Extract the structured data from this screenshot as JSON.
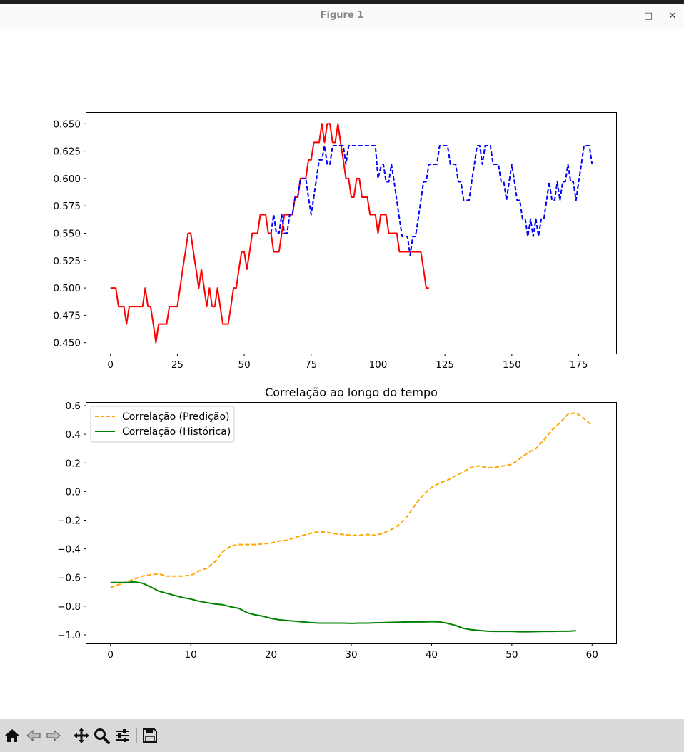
{
  "window": {
    "title": "Figure 1",
    "minimize_glyph": "–",
    "maximize_glyph": "□",
    "close_glyph": "✕"
  },
  "toolbar": {
    "buttons": [
      "home-icon",
      "back-icon",
      "forward-icon",
      "pan-icon",
      "zoom-icon",
      "configure-subplots-icon",
      "save-icon"
    ]
  },
  "colors": {
    "historical_price": "#ff0000",
    "predicted_price": "#0000ff",
    "corr_prediction": "#ffa500",
    "corr_historical": "#008000"
  },
  "chart_data": [
    {
      "type": "line",
      "title": "",
      "xlabel": "",
      "ylabel": "",
      "xlim": [
        -9,
        189
      ],
      "ylim": [
        0.44,
        0.66
      ],
      "xticks": [
        0,
        25,
        50,
        75,
        100,
        125,
        150,
        175
      ],
      "yticks": [
        0.45,
        0.475,
        0.5,
        0.525,
        0.55,
        0.575,
        0.6,
        0.625,
        0.65
      ],
      "ytick_labels": [
        "0.450",
        "0.475",
        "0.500",
        "0.525",
        "0.550",
        "0.575",
        "0.600",
        "0.625",
        "0.650"
      ],
      "grid": false,
      "series": [
        {
          "style": "solid",
          "color": "#ff0000",
          "x": [
            0,
            1,
            2,
            3,
            4,
            5,
            6,
            7,
            8,
            9,
            10,
            11,
            12,
            13,
            14,
            15,
            16,
            17,
            18,
            19,
            20,
            21,
            22,
            23,
            24,
            25,
            26,
            27,
            28,
            29,
            30,
            31,
            32,
            33,
            34,
            35,
            36,
            37,
            38,
            39,
            40,
            41,
            42,
            43,
            44,
            45,
            46,
            47,
            48,
            49,
            50,
            51,
            52,
            53,
            54,
            55,
            56,
            57,
            58,
            59,
            60,
            61,
            62,
            63,
            64,
            65,
            66,
            67,
            68,
            69,
            70,
            71,
            72,
            73,
            74,
            75,
            76,
            77,
            78,
            79,
            80,
            81,
            82,
            83,
            84,
            85,
            86,
            87,
            88,
            89,
            90,
            91,
            92,
            93,
            94,
            95,
            96,
            97,
            98,
            99,
            100,
            101,
            102,
            103,
            104,
            105,
            106,
            107,
            108,
            109,
            110,
            111,
            112,
            113,
            114,
            115,
            116,
            117,
            118,
            119
          ],
          "values": [
            0.5,
            0.5,
            0.5,
            0.483,
            0.483,
            0.483,
            0.467,
            0.483,
            0.483,
            0.483,
            0.483,
            0.483,
            0.483,
            0.5,
            0.483,
            0.483,
            0.467,
            0.45,
            0.467,
            0.467,
            0.467,
            0.467,
            0.483,
            0.483,
            0.483,
            0.483,
            0.5,
            0.517,
            0.533,
            0.55,
            0.55,
            0.533,
            0.517,
            0.5,
            0.517,
            0.5,
            0.483,
            0.5,
            0.483,
            0.483,
            0.5,
            0.483,
            0.467,
            0.467,
            0.467,
            0.483,
            0.5,
            0.5,
            0.517,
            0.533,
            0.533,
            0.517,
            0.533,
            0.55,
            0.55,
            0.55,
            0.567,
            0.567,
            0.567,
            0.55,
            0.55,
            0.533,
            0.533,
            0.533,
            0.55,
            0.567,
            0.567,
            0.567,
            0.567,
            0.583,
            0.583,
            0.6,
            0.6,
            0.6,
            0.617,
            0.617,
            0.633,
            0.633,
            0.633,
            0.65,
            0.633,
            0.65,
            0.65,
            0.633,
            0.633,
            0.65,
            0.633,
            0.617,
            0.6,
            0.6,
            0.583,
            0.583,
            0.6,
            0.6,
            0.583,
            0.583,
            0.583,
            0.567,
            0.567,
            0.567,
            0.55,
            0.567,
            0.567,
            0.567,
            0.55,
            0.55,
            0.55,
            0.55,
            0.533,
            0.533,
            0.533,
            0.533,
            0.533,
            0.533,
            0.533,
            0.533,
            0.533,
            0.517,
            0.5,
            0.5
          ]
        },
        {
          "style": "dashed",
          "color": "#0000ff",
          "x": [
            60,
            61,
            62,
            63,
            64,
            65,
            66,
            67,
            68,
            69,
            70,
            71,
            72,
            73,
            74,
            75,
            76,
            77,
            78,
            79,
            80,
            81,
            82,
            83,
            84,
            85,
            86,
            87,
            88,
            89,
            90,
            91,
            92,
            93,
            94,
            95,
            96,
            97,
            98,
            99,
            100,
            101,
            102,
            103,
            104,
            105,
            106,
            107,
            108,
            109,
            110,
            111,
            112,
            113,
            114,
            115,
            116,
            117,
            118,
            119,
            120,
            121,
            122,
            123,
            124,
            125,
            126,
            127,
            128,
            129,
            130,
            131,
            132,
            133,
            134,
            135,
            136,
            137,
            138,
            139,
            140,
            141,
            142,
            143,
            144,
            145,
            146,
            147,
            148,
            149,
            150,
            151,
            152,
            153,
            154,
            155,
            156,
            157,
            158,
            159,
            160,
            161,
            162,
            163,
            164,
            165,
            166,
            167,
            168,
            169,
            170,
            171,
            172,
            173,
            174,
            175,
            176,
            177,
            178,
            179,
            180
          ],
          "values": [
            0.55,
            0.567,
            0.55,
            0.55,
            0.567,
            0.55,
            0.55,
            0.567,
            0.567,
            0.583,
            0.583,
            0.6,
            0.6,
            0.6,
            0.583,
            0.567,
            0.583,
            0.6,
            0.617,
            0.617,
            0.63,
            0.613,
            0.613,
            0.63,
            0.63,
            0.63,
            0.63,
            0.63,
            0.613,
            0.63,
            0.63,
            0.63,
            0.63,
            0.63,
            0.63,
            0.63,
            0.63,
            0.63,
            0.63,
            0.63,
            0.6,
            0.61,
            0.613,
            0.597,
            0.597,
            0.613,
            0.597,
            0.58,
            0.563,
            0.547,
            0.547,
            0.547,
            0.53,
            0.547,
            0.547,
            0.563,
            0.58,
            0.597,
            0.597,
            0.613,
            0.613,
            0.613,
            0.613,
            0.63,
            0.63,
            0.63,
            0.63,
            0.613,
            0.613,
            0.613,
            0.597,
            0.597,
            0.58,
            0.58,
            0.58,
            0.597,
            0.613,
            0.63,
            0.63,
            0.613,
            0.63,
            0.63,
            0.63,
            0.613,
            0.613,
            0.613,
            0.597,
            0.597,
            0.58,
            0.597,
            0.613,
            0.597,
            0.58,
            0.58,
            0.563,
            0.563,
            0.547,
            0.563,
            0.547,
            0.563,
            0.547,
            0.563,
            0.563,
            0.58,
            0.597,
            0.58,
            0.58,
            0.597,
            0.58,
            0.597,
            0.597,
            0.613,
            0.597,
            0.597,
            0.58,
            0.597,
            0.613,
            0.63,
            0.63,
            0.63,
            0.613
          ]
        }
      ]
    },
    {
      "type": "line",
      "title": "Correlação ao longo do tempo",
      "xlabel": "",
      "ylabel": "",
      "xlim": [
        -3,
        63
      ],
      "ylim": [
        -1.06,
        0.62
      ],
      "xticks": [
        0,
        10,
        20,
        30,
        40,
        50,
        60
      ],
      "yticks": [
        -1.0,
        -0.8,
        -0.6,
        -0.4,
        -0.2,
        0.0,
        0.2,
        0.4,
        0.6
      ],
      "ytick_labels": [
        "−1.0",
        "−0.8",
        "−0.6",
        "−0.4",
        "−0.2",
        "0.0",
        "0.2",
        "0.4",
        "0.6"
      ],
      "grid": false,
      "legend": "upper left",
      "series": [
        {
          "name": "Correlação (Predição)",
          "style": "dashed",
          "color": "#ffa500",
          "x": [
            0,
            1,
            2,
            3,
            4,
            5,
            6,
            7,
            8,
            9,
            10,
            11,
            12,
            13,
            14,
            15,
            16,
            17,
            18,
            19,
            20,
            21,
            22,
            23,
            24,
            25,
            26,
            27,
            28,
            29,
            30,
            31,
            32,
            33,
            34,
            35,
            36,
            37,
            38,
            39,
            40,
            41,
            42,
            43,
            44,
            45,
            46,
            47,
            48,
            49,
            50,
            51,
            52,
            53,
            54,
            55,
            56,
            57,
            58,
            59,
            60
          ],
          "values": [
            -0.67,
            -0.65,
            -0.63,
            -0.61,
            -0.59,
            -0.58,
            -0.575,
            -0.59,
            -0.59,
            -0.59,
            -0.585,
            -0.555,
            -0.535,
            -0.49,
            -0.42,
            -0.38,
            -0.37,
            -0.37,
            -0.37,
            -0.365,
            -0.36,
            -0.345,
            -0.34,
            -0.32,
            -0.305,
            -0.29,
            -0.28,
            -0.285,
            -0.295,
            -0.3,
            -0.305,
            -0.305,
            -0.3,
            -0.305,
            -0.29,
            -0.265,
            -0.23,
            -0.17,
            -0.09,
            -0.02,
            0.03,
            0.06,
            0.08,
            0.11,
            0.14,
            0.17,
            0.18,
            0.165,
            0.17,
            0.18,
            0.19,
            0.23,
            0.27,
            0.3,
            0.36,
            0.43,
            0.48,
            0.54,
            0.55,
            0.51,
            0.46
          ]
        },
        {
          "name": "Correlação (Histórica)",
          "style": "solid",
          "color": "#008000",
          "x": [
            0,
            1,
            2,
            3,
            4,
            5,
            6,
            7,
            8,
            9,
            10,
            11,
            12,
            13,
            14,
            15,
            16,
            17,
            18,
            19,
            20,
            21,
            22,
            23,
            24,
            25,
            26,
            27,
            28,
            29,
            30,
            31,
            32,
            33,
            34,
            35,
            36,
            37,
            38,
            39,
            40,
            41,
            42,
            43,
            44,
            45,
            46,
            47,
            48,
            49,
            50,
            51,
            52,
            53,
            54,
            55,
            56,
            57,
            58
          ],
          "values": [
            -0.635,
            -0.635,
            -0.635,
            -0.63,
            -0.64,
            -0.665,
            -0.695,
            -0.71,
            -0.725,
            -0.74,
            -0.75,
            -0.765,
            -0.775,
            -0.785,
            -0.79,
            -0.805,
            -0.815,
            -0.845,
            -0.86,
            -0.87,
            -0.885,
            -0.895,
            -0.9,
            -0.905,
            -0.91,
            -0.915,
            -0.918,
            -0.918,
            -0.918,
            -0.918,
            -0.92,
            -0.918,
            -0.918,
            -0.916,
            -0.915,
            -0.913,
            -0.912,
            -0.91,
            -0.91,
            -0.91,
            -0.908,
            -0.91,
            -0.92,
            -0.935,
            -0.955,
            -0.965,
            -0.97,
            -0.975,
            -0.976,
            -0.976,
            -0.976,
            -0.978,
            -0.978,
            -0.977,
            -0.976,
            -0.976,
            -0.975,
            -0.975,
            -0.972
          ]
        }
      ]
    }
  ]
}
